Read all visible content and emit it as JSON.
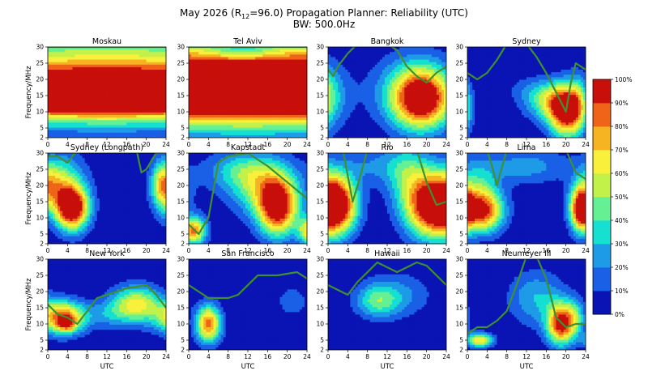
{
  "chart_data": {
    "type": "heatmap",
    "title_prefix": "May 2026 (R",
    "title_sub": "12",
    "title_suffix": "=96.0) Propagation Planner: Reliability (UTC)",
    "subtitle": "BW: 500.0Hz",
    "xlabel": "UTC",
    "ylabel": "Frequency/MHz",
    "x_range": [
      0,
      24
    ],
    "x_ticks": [
      "0",
      "4",
      "8",
      "12",
      "16",
      "20",
      "24"
    ],
    "y_range": [
      2,
      30
    ],
    "y_ticks": [
      "2",
      "5",
      "10",
      "15",
      "20",
      "25",
      "30"
    ],
    "colorbar": {
      "ticks": [
        "0%",
        "10%",
        "20%",
        "30%",
        "40%",
        "50%",
        "60%",
        "70%",
        "80%",
        "90%",
        "100%"
      ],
      "colors": [
        "#0a14b4",
        "#1960e6",
        "#1e9be6",
        "#15e0d2",
        "#66f094",
        "#c2f24a",
        "#f8f03a",
        "#f6b322",
        "#f0641a",
        "#c80f0a"
      ]
    },
    "muf_color": "#3f9130",
    "panels": [
      {
        "name": "Moskau",
        "muf": [
          [
            0,
            30
          ],
          [
            2,
            30
          ],
          [
            4,
            30
          ],
          [
            24,
            30
          ]
        ],
        "blobs": [
          [
            12,
            15,
            15,
            3.4,
            0.2
          ],
          [
            12,
            22,
            11,
            9,
            0.55
          ],
          [
            12,
            15,
            11,
            5.5,
            0.75
          ]
        ]
      },
      {
        "name": "Tel Aviv",
        "muf": [
          [
            0,
            30
          ],
          [
            24,
            30
          ]
        ],
        "blobs": [
          [
            12,
            16,
            15,
            3,
            0.2
          ],
          [
            12,
            22,
            12,
            10,
            0.6
          ],
          [
            12,
            16,
            11,
            7,
            0.8
          ],
          [
            11,
            29,
            6,
            2.5,
            -0.35
          ]
        ]
      },
      {
        "name": "Bangkok",
        "muf": [
          [
            0,
            23
          ],
          [
            1,
            21
          ],
          [
            2,
            24
          ],
          [
            4,
            28
          ],
          [
            6,
            31
          ],
          [
            12,
            31
          ],
          [
            14,
            29
          ],
          [
            16,
            24
          ],
          [
            18,
            21
          ],
          [
            20,
            19
          ],
          [
            22,
            22
          ],
          [
            24,
            24
          ]
        ],
        "blobs": [
          [
            19,
            14,
            4.2,
            6.5,
            1.0
          ],
          [
            17,
            17,
            6,
            8,
            0.25
          ]
        ]
      },
      {
        "name": "Sydney",
        "muf": [
          [
            0,
            22
          ],
          [
            2,
            20
          ],
          [
            4,
            22
          ],
          [
            6,
            26
          ],
          [
            8,
            31
          ],
          [
            12,
            31
          ],
          [
            14,
            27
          ],
          [
            16,
            22
          ],
          [
            18,
            16
          ],
          [
            20,
            10
          ],
          [
            21,
            19
          ],
          [
            22,
            25
          ],
          [
            24,
            23
          ]
        ],
        "blobs": [
          [
            20,
            10,
            2.4,
            5.5,
            1.0
          ],
          [
            16.5,
            13,
            3.5,
            4,
            0.45
          ],
          [
            22.5,
            13,
            1.5,
            6,
            0.3
          ],
          [
            13,
            17,
            4,
            3,
            0.12
          ]
        ]
      },
      {
        "name": "Sydney (Longpath)",
        "muf": [
          [
            0,
            29
          ],
          [
            2,
            29
          ],
          [
            4,
            27
          ],
          [
            6,
            31
          ],
          [
            18,
            31
          ],
          [
            19,
            24
          ],
          [
            20,
            25
          ],
          [
            22,
            30
          ],
          [
            24,
            30
          ]
        ],
        "blobs": [
          [
            5,
            13,
            2.2,
            4.5,
            1.0
          ],
          [
            1.5,
            20,
            2.5,
            6,
            0.5
          ],
          [
            23,
            20,
            1.5,
            5,
            0.45
          ],
          [
            5,
            18,
            3,
            8,
            0.25
          ]
        ]
      },
      {
        "name": "Kapstadt",
        "muf": [
          [
            0,
            8
          ],
          [
            2,
            5
          ],
          [
            4,
            10
          ],
          [
            6,
            27
          ],
          [
            8,
            29
          ],
          [
            12,
            30
          ],
          [
            16,
            26
          ],
          [
            20,
            21
          ],
          [
            24,
            16
          ]
        ],
        "blobs": [
          [
            18,
            13,
            2.8,
            6,
            1.0
          ],
          [
            15,
            20,
            5,
            6,
            0.5
          ],
          [
            1,
            6,
            1.8,
            3,
            0.8
          ],
          [
            10,
            25,
            5,
            4,
            0.25
          ]
        ]
      },
      {
        "name": "Rio",
        "muf": [
          [
            0,
            31
          ],
          [
            3,
            31
          ],
          [
            5,
            15
          ],
          [
            6,
            20
          ],
          [
            8,
            31
          ],
          [
            18,
            31
          ],
          [
            20,
            21
          ],
          [
            22,
            14
          ],
          [
            24,
            15
          ]
        ],
        "blobs": [
          [
            21,
            14,
            3.5,
            7,
            1.1
          ],
          [
            2,
            14,
            2.8,
            6,
            1.0
          ],
          [
            10,
            26,
            6,
            4,
            0.2
          ],
          [
            16,
            22,
            3,
            8,
            0.3
          ]
        ]
      },
      {
        "name": "Lima",
        "muf": [
          [
            0,
            31
          ],
          [
            4,
            31
          ],
          [
            5,
            26
          ],
          [
            6,
            20
          ],
          [
            8,
            31
          ],
          [
            20,
            31
          ],
          [
            22,
            24
          ],
          [
            24,
            22
          ]
        ],
        "blobs": [
          [
            3,
            12,
            3,
            4.5,
            0.9
          ],
          [
            23,
            13,
            1.5,
            5,
            0.85
          ],
          [
            12,
            26,
            6,
            4,
            0.25
          ],
          [
            2,
            20,
            3,
            6,
            0.3
          ]
        ]
      },
      {
        "name": "New York",
        "muf": [
          [
            0,
            16
          ],
          [
            2,
            13
          ],
          [
            4,
            12
          ],
          [
            6,
            10
          ],
          [
            8,
            14
          ],
          [
            10,
            18
          ],
          [
            12,
            19
          ],
          [
            16,
            21
          ],
          [
            20,
            22
          ],
          [
            22,
            19
          ],
          [
            24,
            15
          ]
        ],
        "blobs": [
          [
            3,
            12,
            3.2,
            3.5,
            0.9
          ],
          [
            4,
            10,
            1.2,
            1.5,
            0.4
          ],
          [
            18,
            16,
            3.5,
            4,
            0.65
          ],
          [
            12,
            13,
            3,
            3,
            0.2
          ]
        ]
      },
      {
        "name": "San Francisco",
        "muf": [
          [
            0,
            22
          ],
          [
            2,
            20
          ],
          [
            4,
            18
          ],
          [
            8,
            18
          ],
          [
            10,
            19
          ],
          [
            12,
            22
          ],
          [
            14,
            25
          ],
          [
            18,
            25
          ],
          [
            22,
            26
          ],
          [
            24,
            24
          ]
        ],
        "blobs": [
          [
            4,
            10,
            1.8,
            4,
            0.85
          ],
          [
            21,
            17,
            2,
            3,
            0.2
          ]
        ]
      },
      {
        "name": "Hawaii",
        "muf": [
          [
            0,
            22
          ],
          [
            4,
            19
          ],
          [
            6,
            23
          ],
          [
            8,
            26
          ],
          [
            10,
            29
          ],
          [
            14,
            26
          ],
          [
            18,
            29
          ],
          [
            20,
            28
          ],
          [
            22,
            25
          ],
          [
            24,
            22
          ]
        ],
        "blobs": [
          [
            10,
            17,
            3,
            3.5,
            0.35
          ],
          [
            14,
            19,
            5,
            5,
            0.22
          ]
        ]
      },
      {
        "name": "Neumeyer III",
        "muf": [
          [
            0,
            7
          ],
          [
            2,
            9
          ],
          [
            4,
            9
          ],
          [
            6,
            11
          ],
          [
            8,
            14
          ],
          [
            10,
            22
          ],
          [
            12,
            31
          ],
          [
            14,
            31
          ],
          [
            16,
            24
          ],
          [
            18,
            12
          ],
          [
            20,
            9
          ],
          [
            22,
            10
          ],
          [
            24,
            10
          ]
        ],
        "blobs": [
          [
            19,
            10,
            2,
            4.5,
            0.95
          ],
          [
            14,
            18,
            4,
            6,
            0.3
          ],
          [
            2.5,
            5,
            1.8,
            1.5,
            0.7
          ],
          [
            22,
            12,
            1.5,
            4,
            0.3
          ]
        ]
      }
    ]
  }
}
